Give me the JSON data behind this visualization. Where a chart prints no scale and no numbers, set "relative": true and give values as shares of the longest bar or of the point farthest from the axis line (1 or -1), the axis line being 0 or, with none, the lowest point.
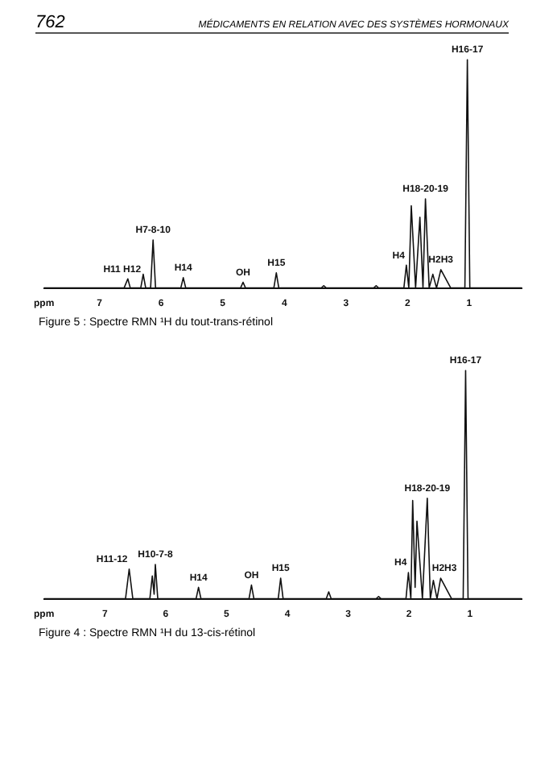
{
  "chart_data": [
    {
      "type": "line",
      "title": "Figure 5 : Spectre RMN ¹H du tout-trans-rétinol",
      "relative": true,
      "tick_labels": "x",
      "grid": false,
      "legend": false,
      "marker": "none",
      "line_style": "solid",
      "xlim": [
        7.9,
        0.15
      ],
      "xticks": [
        {
          "value": 7.9,
          "label": "ppm"
        },
        7,
        6,
        5,
        4,
        3,
        2,
        1
      ],
      "series": [
        {
          "color": "#111111",
          "x": [
            7.9,
            6.6,
            6.54,
            6.5,
            6.33,
            6.29,
            6.25,
            6.17,
            6.13,
            6.09,
            5.68,
            5.64,
            5.6,
            4.71,
            4.67,
            4.63,
            4.17,
            4.13,
            4.09,
            3.4,
            3.36,
            3.32,
            2.55,
            2.51,
            2.47,
            2.06,
            2.02,
            1.98,
            1.94,
            1.87,
            1.8,
            1.75,
            1.71,
            1.65,
            1.59,
            1.53,
            1.46,
            1.3,
            1.07,
            1.03,
            0.99,
            0.15
          ],
          "values": [
            0,
            0,
            0.04,
            0,
            0,
            0.06,
            0,
            0,
            0.21,
            0,
            0,
            0.045,
            0,
            0,
            0.025,
            0,
            0,
            0.066,
            0,
            0,
            0.01,
            0,
            0,
            0.01,
            0,
            0,
            0.1,
            0,
            0.36,
            0,
            0.31,
            0,
            0.39,
            0,
            0.06,
            0,
            0.08,
            0,
            0,
            1,
            0,
            0
          ]
        }
      ],
      "annotations": [
        "762",
        "MÉDICAMENTS EN RELATION AVEC DES SYSTÈMES HORMONAUX",
        {
          "text": "H16-17",
          "x": 1.03,
          "y": 1
        },
        {
          "text": "H18-20-19",
          "x": 1.71,
          "y": 0.39
        },
        {
          "text": "H7-8-10",
          "x": 6.13,
          "y": 0.21
        },
        {
          "text": "H11 H12",
          "x": 6.54,
          "y": 0.04
        },
        {
          "text": "H14",
          "x": 5.64,
          "y": 0.045
        },
        {
          "text": "OH",
          "x": 4.67,
          "y": 0.025
        },
        {
          "text": "H15",
          "x": 4.13,
          "y": 0.066
        },
        {
          "text": "H4",
          "x": 2.02,
          "y": 0.1
        },
        {
          "text": "H2H3",
          "x": 1.46,
          "y": 0.08
        }
      ]
    },
    {
      "type": "line",
      "title": "Figure 4 : Spectre RMN ¹H du 13-cis-rétinol",
      "relative": true,
      "tick_labels": "x",
      "grid": false,
      "legend": false,
      "marker": "none",
      "line_style": "solid",
      "xlim": [
        8.0,
        0.15
      ],
      "xticks": [
        {
          "value": 8.0,
          "label": "ppm"
        },
        7,
        6,
        5,
        4,
        3,
        2,
        1
      ],
      "series": [
        {
          "color": "#111111",
          "x": [
            8.0,
            6.66,
            6.6,
            6.54,
            6.26,
            6.22,
            6.19,
            6.17,
            6.13,
            5.5,
            5.46,
            5.42,
            4.63,
            4.59,
            4.55,
            4.15,
            4.11,
            4.07,
            3.36,
            3.32,
            3.28,
            2.54,
            2.5,
            2.46,
            2.05,
            2.01,
            1.97,
            1.94,
            1.9,
            1.87,
            1.78,
            1.7,
            1.65,
            1.6,
            1.54,
            1.48,
            1.3,
            1.11,
            1.07,
            1.03,
            0.15
          ],
          "values": [
            0,
            0,
            0.13,
            0,
            0,
            0.1,
            0.02,
            0.15,
            0,
            0,
            0.05,
            0,
            0,
            0.06,
            0,
            0,
            0.09,
            0,
            0,
            0.03,
            0,
            0,
            0.01,
            0,
            0,
            0.115,
            0,
            0.43,
            0.05,
            0.34,
            0,
            0.44,
            0,
            0.08,
            0,
            0.09,
            0,
            0,
            1,
            0,
            0
          ]
        }
      ],
      "annotations": [
        {
          "text": "H16-17",
          "x": 1.07,
          "y": 1
        },
        {
          "text": "H18-20-19",
          "x": 1.7,
          "y": 0.44
        },
        {
          "text": "H10-7-8",
          "x": 6.17,
          "y": 0.15
        },
        {
          "text": "H11-12",
          "x": 6.6,
          "y": 0.13
        },
        {
          "text": "H14",
          "x": 5.46,
          "y": 0.05
        },
        {
          "text": "OH",
          "x": 4.59,
          "y": 0.06
        },
        {
          "text": "H15",
          "x": 4.11,
          "y": 0.09
        },
        {
          "text": "H4",
          "x": 2.01,
          "y": 0.115
        },
        {
          "text": "H2H3",
          "x": 1.48,
          "y": 0.09
        }
      ]
    }
  ]
}
